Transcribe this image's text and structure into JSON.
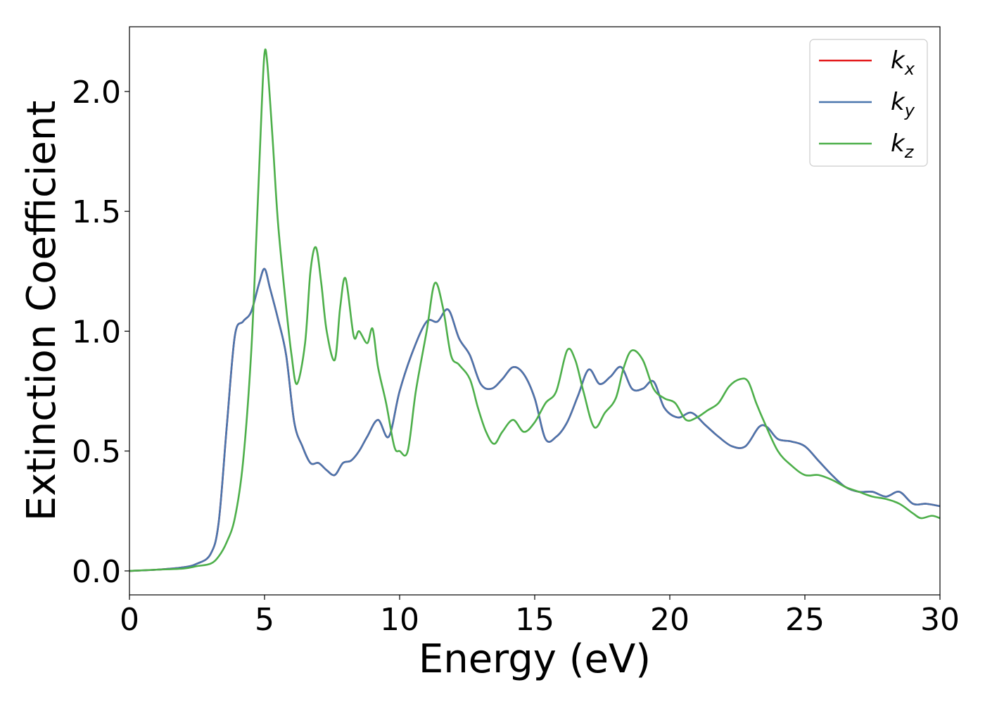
{
  "chart_data": {
    "type": "line",
    "title": "",
    "xlabel": "Energy (eV)",
    "ylabel": "Extinction Coefficient",
    "xlim": [
      0,
      30
    ],
    "ylim": [
      -0.1,
      2.27
    ],
    "xticks": [
      0,
      5,
      10,
      15,
      20,
      25,
      30
    ],
    "xtick_labels": [
      "0",
      "5",
      "10",
      "15",
      "20",
      "25",
      "30"
    ],
    "yticks": [
      0.0,
      0.5,
      1.0,
      1.5,
      2.0
    ],
    "ytick_labels": [
      "0.0",
      "0.5",
      "1.0",
      "1.5",
      "2.0"
    ],
    "grid": false,
    "legend_position": "top-right",
    "series": [
      {
        "name": "k",
        "subscript": "x",
        "color": "#e41a1c",
        "x": [
          0,
          1,
          2,
          2.5,
          3,
          3.3,
          3.6,
          3.9,
          4.2,
          4.5,
          4.8,
          5,
          5.2,
          5.5,
          5.8,
          6.1,
          6.4,
          6.7,
          7,
          7.3,
          7.6,
          7.9,
          8.2,
          8.5,
          8.8,
          9.2,
          9.6,
          10,
          10.5,
          11,
          11.4,
          11.8,
          12.2,
          12.6,
          13,
          13.4,
          13.8,
          14.2,
          14.6,
          15,
          15.4,
          15.8,
          16.2,
          16.6,
          17,
          17.4,
          17.8,
          18.2,
          18.6,
          19,
          19.4,
          19.8,
          20.3,
          20.8,
          21.3,
          21.8,
          22.3,
          22.8,
          23.3,
          23.6,
          24,
          24.5,
          25,
          25.5,
          26,
          26.5,
          27,
          27.5,
          28,
          28.5,
          29,
          29.5,
          30
        ],
        "y": [
          0,
          0.005,
          0.015,
          0.03,
          0.07,
          0.2,
          0.6,
          0.98,
          1.04,
          1.08,
          1.2,
          1.26,
          1.18,
          1.05,
          0.9,
          0.62,
          0.52,
          0.45,
          0.45,
          0.42,
          0.4,
          0.45,
          0.46,
          0.5,
          0.56,
          0.63,
          0.56,
          0.75,
          0.92,
          1.04,
          1.04,
          1.09,
          0.97,
          0.9,
          0.78,
          0.76,
          0.8,
          0.85,
          0.82,
          0.72,
          0.55,
          0.56,
          0.62,
          0.73,
          0.84,
          0.78,
          0.81,
          0.85,
          0.76,
          0.76,
          0.79,
          0.68,
          0.64,
          0.66,
          0.61,
          0.56,
          0.52,
          0.52,
          0.6,
          0.6,
          0.55,
          0.54,
          0.52,
          0.46,
          0.4,
          0.35,
          0.33,
          0.33,
          0.31,
          0.33,
          0.28,
          0.28,
          0.27
        ]
      },
      {
        "name": "k",
        "subscript": "y",
        "color": "#4a75ad",
        "x": [
          0,
          1,
          2,
          2.5,
          3,
          3.3,
          3.6,
          3.9,
          4.2,
          4.5,
          4.8,
          5,
          5.2,
          5.5,
          5.8,
          6.1,
          6.4,
          6.7,
          7,
          7.3,
          7.6,
          7.9,
          8.2,
          8.5,
          8.8,
          9.2,
          9.6,
          10,
          10.5,
          11,
          11.4,
          11.8,
          12.2,
          12.6,
          13,
          13.4,
          13.8,
          14.2,
          14.6,
          15,
          15.4,
          15.8,
          16.2,
          16.6,
          17,
          17.4,
          17.8,
          18.2,
          18.6,
          19,
          19.4,
          19.8,
          20.3,
          20.8,
          21.3,
          21.8,
          22.3,
          22.8,
          23.3,
          23.6,
          24,
          24.5,
          25,
          25.5,
          26,
          26.5,
          27,
          27.5,
          28,
          28.5,
          29,
          29.5,
          30
        ],
        "y": [
          0,
          0.005,
          0.015,
          0.03,
          0.07,
          0.2,
          0.6,
          0.98,
          1.04,
          1.08,
          1.2,
          1.26,
          1.18,
          1.05,
          0.9,
          0.62,
          0.52,
          0.45,
          0.45,
          0.42,
          0.4,
          0.45,
          0.46,
          0.5,
          0.56,
          0.63,
          0.56,
          0.75,
          0.92,
          1.04,
          1.04,
          1.09,
          0.97,
          0.9,
          0.78,
          0.76,
          0.8,
          0.85,
          0.82,
          0.72,
          0.55,
          0.56,
          0.62,
          0.73,
          0.84,
          0.78,
          0.81,
          0.85,
          0.76,
          0.76,
          0.79,
          0.68,
          0.64,
          0.66,
          0.61,
          0.56,
          0.52,
          0.52,
          0.6,
          0.6,
          0.55,
          0.54,
          0.52,
          0.46,
          0.4,
          0.35,
          0.33,
          0.33,
          0.31,
          0.33,
          0.28,
          0.28,
          0.27
        ]
      },
      {
        "name": "k",
        "subscript": "z",
        "color": "#4daf4a",
        "x": [
          0,
          1,
          2,
          2.5,
          3,
          3.3,
          3.6,
          3.9,
          4.2,
          4.5,
          4.7,
          4.9,
          5,
          5.1,
          5.3,
          5.5,
          5.8,
          6,
          6.2,
          6.5,
          6.7,
          6.9,
          7.1,
          7.3,
          7.6,
          7.8,
          8,
          8.3,
          8.5,
          8.8,
          9,
          9.2,
          9.5,
          9.8,
          10,
          10.3,
          10.6,
          11,
          11.3,
          11.6,
          11.9,
          12.2,
          12.6,
          12.9,
          13.2,
          13.5,
          13.8,
          14.2,
          14.6,
          15,
          15.4,
          15.8,
          16.2,
          16.5,
          16.8,
          17.2,
          17.6,
          18,
          18.3,
          18.6,
          19,
          19.4,
          19.8,
          20.2,
          20.6,
          21,
          21.4,
          21.8,
          22.2,
          22.6,
          22.9,
          23.2,
          23.5,
          24,
          24.5,
          25,
          25.5,
          26,
          26.5,
          27,
          27.5,
          28,
          28.5,
          29,
          29.3,
          29.7,
          30
        ],
        "y": [
          0,
          0.005,
          0.01,
          0.02,
          0.03,
          0.06,
          0.12,
          0.22,
          0.45,
          0.9,
          1.4,
          1.95,
          2.16,
          2.12,
          1.8,
          1.45,
          1.1,
          0.9,
          0.78,
          0.95,
          1.25,
          1.35,
          1.2,
          1.0,
          0.88,
          1.1,
          1.22,
          0.98,
          1.0,
          0.95,
          1.01,
          0.85,
          0.7,
          0.52,
          0.5,
          0.5,
          0.75,
          1.0,
          1.2,
          1.1,
          0.9,
          0.86,
          0.8,
          0.68,
          0.58,
          0.53,
          0.58,
          0.63,
          0.58,
          0.62,
          0.7,
          0.75,
          0.92,
          0.88,
          0.75,
          0.6,
          0.66,
          0.72,
          0.85,
          0.92,
          0.88,
          0.76,
          0.72,
          0.7,
          0.63,
          0.64,
          0.67,
          0.7,
          0.77,
          0.8,
          0.79,
          0.7,
          0.62,
          0.5,
          0.44,
          0.4,
          0.4,
          0.38,
          0.35,
          0.33,
          0.31,
          0.3,
          0.28,
          0.24,
          0.22,
          0.23,
          0.22
        ]
      }
    ]
  }
}
